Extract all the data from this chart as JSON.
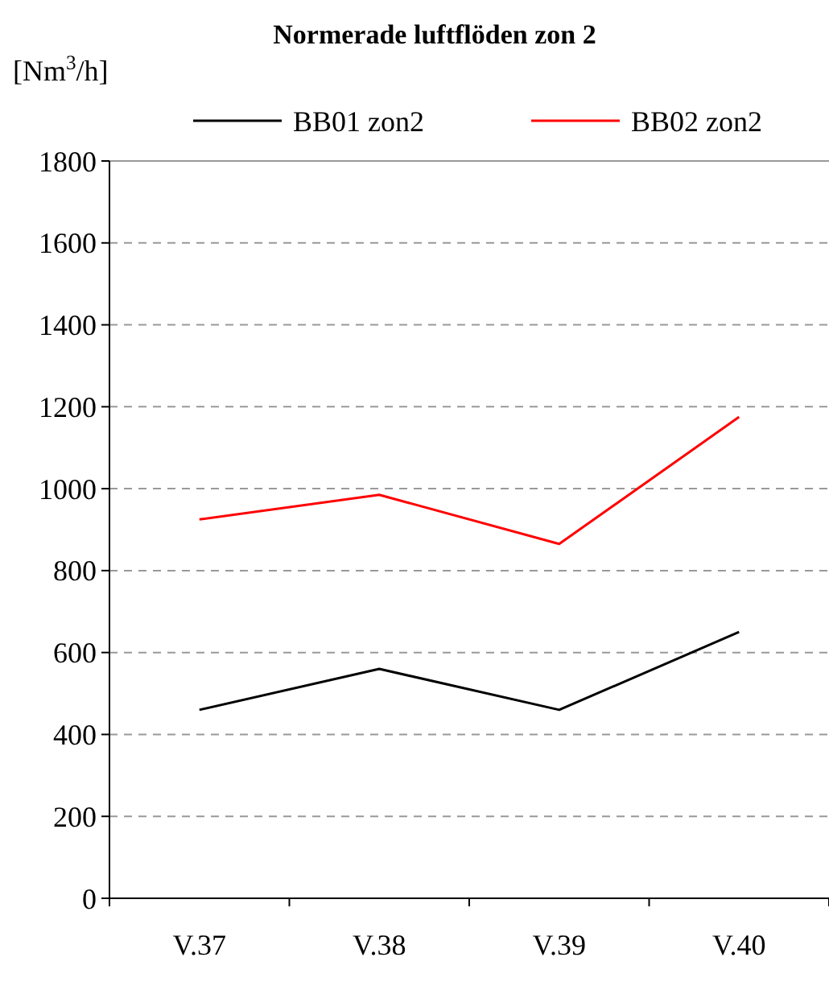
{
  "chart_data": {
    "type": "line",
    "title": "Normerade luftflöden zon 2",
    "ylabel": "[Nm$^{3}$/h]",
    "categories": [
      "V.37",
      "V.38",
      "V.39",
      "V.40"
    ],
    "series": [
      {
        "name": "BB01 zon2",
        "color": "#000000",
        "values": [
          460,
          560,
          460,
          650
        ]
      },
      {
        "name": "BB02 zon2",
        "color": "#ff0000",
        "values": [
          925,
          985,
          865,
          1175
        ]
      }
    ],
    "ylim": [
      0,
      1800
    ],
    "yticks": [
      0,
      200,
      400,
      600,
      800,
      1000,
      1200,
      1400,
      1600,
      1800
    ],
    "grid": "y",
    "legend": "top",
    "marker": "none",
    "line_style": "solid"
  }
}
